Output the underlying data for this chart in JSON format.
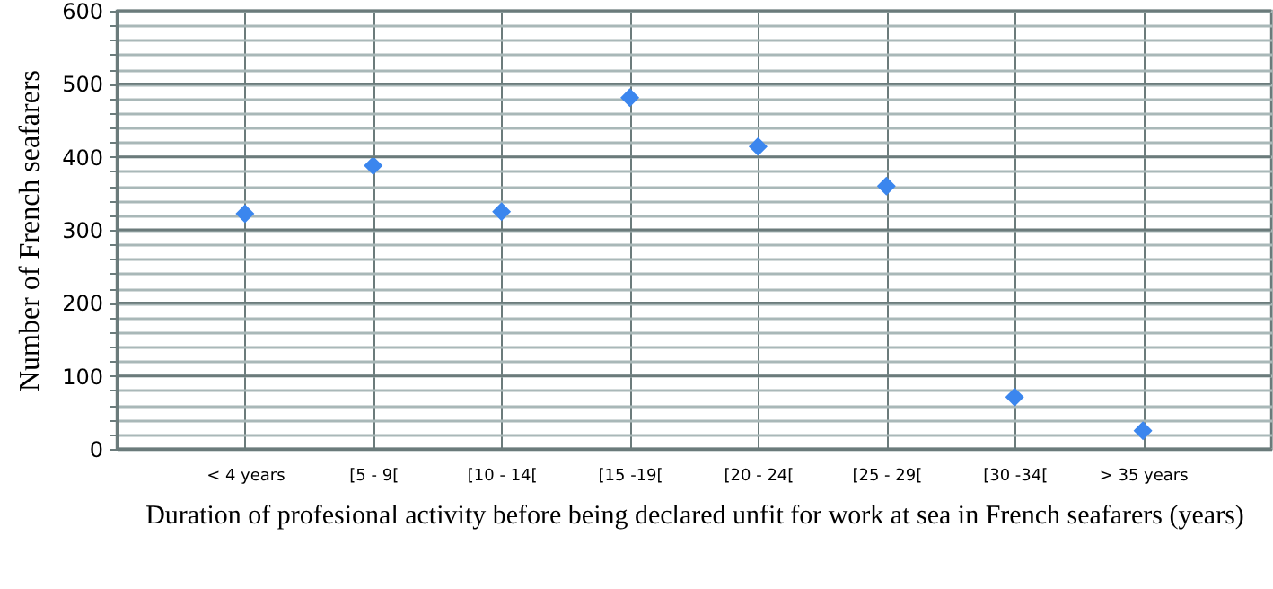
{
  "chart_data": {
    "type": "scatter",
    "xlabel": "Duration of profesional activity before being declared unfit for work at sea in French seafarers (years)",
    "ylabel": "Number of French seafarers",
    "categories": [
      "< 4 years",
      "[5 - 9[",
      "[10 - 14[",
      "[15 -19[",
      "[20 - 24[",
      "[25 - 29[",
      "[30 -34[",
      "> 35 years"
    ],
    "series": [
      {
        "color": "#3b86ee",
        "values": [
          322,
          388,
          325,
          481,
          414,
          360,
          71,
          25
        ]
      }
    ],
    "ylim": [
      0,
      600
    ],
    "yticks": [
      0,
      {
        "value": 20,
        "label": null
      },
      {
        "value": 40,
        "label": null
      },
      {
        "value": 60,
        "label": null
      },
      {
        "value": 80,
        "label": null
      },
      100,
      {
        "value": 120,
        "label": null
      },
      {
        "value": 140,
        "label": null
      },
      {
        "value": 160,
        "label": null
      },
      {
        "value": 180,
        "label": null
      },
      200,
      {
        "value": 220,
        "label": null
      },
      {
        "value": 240,
        "label": null
      },
      {
        "value": 260,
        "label": null
      },
      {
        "value": 280,
        "label": null
      },
      300,
      {
        "value": 320,
        "label": null
      },
      {
        "value": 340,
        "label": null
      },
      {
        "value": 360,
        "label": null
      },
      {
        "value": 380,
        "label": null
      },
      400,
      {
        "value": 420,
        "label": null
      },
      {
        "value": 440,
        "label": null
      },
      {
        "value": 460,
        "label": null
      },
      {
        "value": 480,
        "label": null
      },
      500,
      {
        "value": 520,
        "label": null
      },
      {
        "value": 540,
        "label": null
      },
      {
        "value": 560,
        "label": null
      },
      {
        "value": 580,
        "label": null
      },
      600
    ],
    "grid": true,
    "marker": "diamond"
  }
}
